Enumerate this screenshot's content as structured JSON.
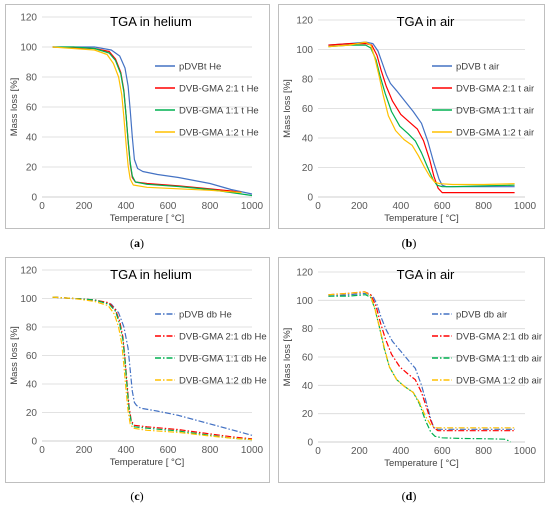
{
  "chart_data": [
    {
      "type": "line",
      "title": "TGA in helium",
      "xlabel": "Temperature [ °C]",
      "ylabel": "Mass loss [%]",
      "xlim": [
        0,
        1000
      ],
      "ylim": [
        0,
        120
      ],
      "xticks": [
        0,
        200,
        400,
        600,
        800,
        1000
      ],
      "yticks": [
        0,
        20,
        40,
        60,
        80,
        100,
        120
      ],
      "grid": "horizontal",
      "legend": "right",
      "caption": "a",
      "line_style": "solid",
      "series": [
        {
          "name": "pDVBt He",
          "color": "#4472c4",
          "x": [
            50,
            150,
            250,
            330,
            370,
            395,
            410,
            420,
            430,
            440,
            455,
            480,
            550,
            650,
            800,
            900,
            1000
          ],
          "y": [
            100,
            100,
            100,
            98,
            94,
            86,
            74,
            58,
            40,
            25,
            19,
            17,
            15,
            13,
            9,
            5,
            2
          ]
        },
        {
          "name": "DVB-GMA 2:1 t He",
          "color": "#ff0000",
          "x": [
            50,
            150,
            250,
            320,
            350,
            375,
            390,
            400,
            410,
            420,
            430,
            445,
            500,
            650,
            800,
            900,
            950
          ],
          "y": [
            100,
            99.5,
            99,
            97,
            92,
            83,
            71,
            55,
            37,
            22,
            13,
            10,
            9,
            7.5,
            5.5,
            4,
            3
          ]
        },
        {
          "name": "DVB-GMA 1:1 t He",
          "color": "#00b050",
          "x": [
            50,
            150,
            250,
            320,
            350,
            375,
            390,
            400,
            410,
            420,
            430,
            445,
            500,
            650,
            800,
            900,
            1000
          ],
          "y": [
            100,
            100,
            99,
            96,
            91,
            82,
            70,
            55,
            38,
            23,
            14,
            10,
            8.5,
            7,
            5,
            3,
            1
          ]
        },
        {
          "name": "DVB-GMA 1:2 t He",
          "color": "#ffc000",
          "x": [
            50,
            150,
            250,
            310,
            340,
            365,
            380,
            390,
            400,
            410,
            420,
            435,
            500,
            650,
            800,
            900,
            950
          ],
          "y": [
            100,
            99,
            98,
            95,
            89,
            80,
            68,
            53,
            36,
            21,
            12,
            8,
            6.5,
            5.5,
            4.5,
            3.5,
            3
          ]
        }
      ]
    },
    {
      "type": "line",
      "title": "TGA in air",
      "xlabel": "Temperature [ °C]",
      "ylabel": "Mass loss [%]",
      "xlim": [
        0,
        1000
      ],
      "ylim": [
        0,
        120
      ],
      "xticks": [
        0,
        200,
        400,
        600,
        800,
        1000
      ],
      "yticks": [
        0,
        20,
        40,
        60,
        80,
        100,
        120
      ],
      "grid": "horizontal",
      "legend": "right",
      "caption": "b",
      "line_style": "solid",
      "series": [
        {
          "name": "pDVB t air",
          "color": "#4472c4",
          "x": [
            50,
            150,
            230,
            265,
            290,
            310,
            330,
            350,
            380,
            420,
            460,
            500,
            530,
            560,
            585,
            600,
            620,
            700,
            800,
            950
          ],
          "y": [
            103,
            104,
            105,
            104,
            99,
            91,
            83,
            77,
            72,
            65,
            58,
            50,
            38,
            23,
            12,
            8,
            7,
            7,
            7,
            7
          ]
        },
        {
          "name": "DVB-GMA 2:1 t air",
          "color": "#ff0000",
          "x": [
            50,
            150,
            230,
            260,
            285,
            305,
            330,
            360,
            400,
            440,
            480,
            510,
            540,
            560,
            580,
            600,
            650,
            800,
            950
          ],
          "y": [
            103,
            104,
            104,
            103,
            96,
            86,
            75,
            65,
            56,
            51,
            46,
            38,
            25,
            14,
            6,
            3,
            3,
            3,
            3
          ]
        },
        {
          "name": "DVB-GMA 1:1 t air",
          "color": "#00b050",
          "x": [
            50,
            150,
            230,
            255,
            280,
            300,
            325,
            355,
            395,
            435,
            470,
            500,
            530,
            555,
            575,
            600,
            650,
            800,
            950
          ],
          "y": [
            102,
            103,
            103,
            101,
            93,
            82,
            70,
            58,
            48,
            43,
            38,
            30,
            20,
            12,
            8,
            7,
            7,
            7.5,
            8
          ]
        },
        {
          "name": "DVB-GMA 1:2 t air",
          "color": "#ffc000",
          "x": [
            50,
            150,
            230,
            255,
            275,
            295,
            315,
            340,
            375,
            415,
            455,
            485,
            515,
            540,
            565,
            590,
            650,
            800,
            950
          ],
          "y": [
            102,
            103,
            105,
            103,
            94,
            82,
            69,
            55,
            45,
            39,
            35,
            28,
            20,
            14,
            10,
            9,
            8.5,
            8.5,
            9
          ]
        }
      ]
    },
    {
      "type": "line",
      "title": "TGA in helium",
      "xlabel": "Temperature [ °C]",
      "ylabel": "Mass loss [%]",
      "xlim": [
        0,
        1000
      ],
      "ylim": [
        0,
        120
      ],
      "xticks": [
        0,
        200,
        400,
        600,
        800,
        1000
      ],
      "yticks": [
        0,
        20,
        40,
        60,
        80,
        100,
        120
      ],
      "grid": "horizontal",
      "legend": "right",
      "caption": "c",
      "line_style": "dashdot",
      "series": [
        {
          "name": "pDVB db He",
          "color": "#4472c4",
          "x": [
            50,
            150,
            250,
            330,
            365,
            390,
            410,
            420,
            430,
            440,
            450,
            470,
            550,
            650,
            800,
            900,
            1000
          ],
          "y": [
            101,
            100,
            99,
            96,
            90,
            80,
            65,
            50,
            35,
            27,
            25,
            23,
            21,
            18,
            12,
            8,
            4
          ]
        },
        {
          "name": "DVB-GMA 2:1 db He",
          "color": "#ff0000",
          "x": [
            50,
            150,
            250,
            320,
            350,
            370,
            385,
            395,
            405,
            415,
            425,
            440,
            500,
            650,
            800,
            900,
            1000
          ],
          "y": [
            101,
            100,
            99,
            97,
            92,
            84,
            73,
            58,
            40,
            24,
            14,
            11,
            10,
            8,
            5,
            3,
            1.5
          ]
        },
        {
          "name": "DVB-GMA 1:1 db He",
          "color": "#00b050",
          "x": [
            50,
            150,
            250,
            320,
            350,
            370,
            385,
            395,
            405,
            415,
            425,
            440,
            500,
            650,
            800,
            900,
            1000
          ],
          "y": [
            101,
            100,
            99,
            96,
            91,
            82,
            71,
            56,
            38,
            22,
            13,
            10,
            9,
            7,
            4,
            2,
            1
          ]
        },
        {
          "name": "DVB-GMA 1:2 db He",
          "color": "#ffc000",
          "x": [
            50,
            150,
            250,
            315,
            345,
            365,
            380,
            390,
            400,
            410,
            420,
            435,
            500,
            650,
            800,
            900,
            1000
          ],
          "y": [
            101,
            100,
            98,
            95,
            89,
            80,
            68,
            53,
            36,
            21,
            12,
            9,
            7.5,
            6,
            3.5,
            2,
            1
          ]
        }
      ]
    },
    {
      "type": "line",
      "title": "TGA in air",
      "xlabel": "Temperature [ °C]",
      "ylabel": "Mass loss [%]",
      "xlim": [
        0,
        1000
      ],
      "ylim": [
        0,
        120
      ],
      "xticks": [
        0,
        200,
        400,
        600,
        800,
        1000
      ],
      "yticks": [
        0,
        20,
        40,
        60,
        80,
        100,
        120
      ],
      "grid": "horizontal",
      "legend": "right",
      "caption": "d",
      "line_style": "dashdot",
      "series": [
        {
          "name": "pDVB db air",
          "color": "#4472c4",
          "x": [
            50,
            150,
            230,
            265,
            285,
            305,
            330,
            360,
            400,
            440,
            470,
            500,
            525,
            545,
            560,
            580,
            650,
            800,
            950
          ],
          "y": [
            103,
            104,
            105,
            103,
            97,
            88,
            79,
            71,
            64,
            57,
            52,
            40,
            27,
            16,
            10,
            9,
            9,
            9,
            9
          ]
        },
        {
          "name": "DVB-GMA 2:1 db air",
          "color": "#ff0000",
          "x": [
            50,
            150,
            225,
            255,
            280,
            300,
            325,
            355,
            395,
            435,
            470,
            500,
            525,
            545,
            560,
            580,
            650,
            800,
            950
          ],
          "y": [
            104,
            105,
            106,
            104,
            96,
            85,
            73,
            62,
            53,
            48,
            44,
            35,
            24,
            15,
            10,
            8,
            8,
            8,
            8
          ]
        },
        {
          "name": "DVB-GMA 1:1 db air",
          "color": "#00b050",
          "x": [
            50,
            150,
            230,
            255,
            275,
            295,
            320,
            345,
            380,
            420,
            460,
            490,
            520,
            545,
            565,
            600,
            700,
            800,
            900,
            920,
            930
          ],
          "y": [
            103,
            103,
            104,
            102,
            94,
            82,
            66,
            53,
            44,
            39,
            35,
            27,
            15,
            7,
            4,
            3,
            2.5,
            2.3,
            2,
            1,
            0
          ]
        },
        {
          "name": "DVB-GMA 1:2 db air",
          "color": "#ffc000",
          "x": [
            50,
            150,
            225,
            255,
            275,
            295,
            320,
            345,
            380,
            420,
            460,
            490,
            520,
            545,
            565,
            600,
            700,
            850,
            950
          ],
          "y": [
            104,
            105,
            106,
            103,
            94,
            82,
            67,
            53,
            44,
            39,
            35,
            28,
            18,
            12,
            10,
            10,
            10,
            10,
            10
          ]
        }
      ]
    }
  ]
}
